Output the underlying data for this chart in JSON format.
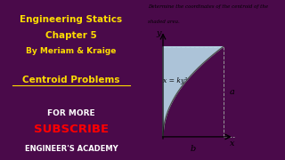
{
  "left_panel_bg": "#4a0a4a",
  "right_panel_bg": "#ffffff",
  "teal_bar_color": "#008080",
  "title_line1": "Engineering Statics",
  "title_line2": "Chapter 5",
  "title_line3": "By Meriam & Kraige",
  "title_color": "#ffdd00",
  "centroid_label": "Centroid Problems",
  "centroid_color": "#ffdd00",
  "for_more_text": "FOR MORE",
  "for_more_color": "#ffffff",
  "subscribe_text": "SUBSCRIBE",
  "subscribe_color": "#ff0000",
  "academy_text": "ENGINEER'S ACADEMY",
  "academy_color": "#ffffff",
  "problem_text1": "Determine the coordinates of the centroid of the",
  "problem_text2": "shaded area.",
  "problem_text_color": "#000000",
  "curve_label": "x = ky²",
  "shade_color": "#b8d8e8",
  "axis_label_a": "a",
  "axis_label_b": "b",
  "axis_label_x": "x",
  "axis_label_y": "y"
}
